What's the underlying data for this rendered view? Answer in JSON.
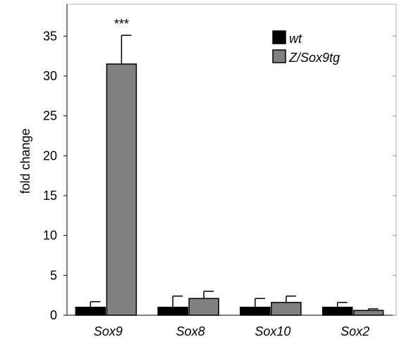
{
  "chart_data": {
    "type": "bar",
    "categories": [
      "Sox9",
      "Sox8",
      "Sox10",
      "Sox2"
    ],
    "series": [
      {
        "name": "wt",
        "values": [
          1.0,
          1.0,
          1.0,
          1.0
        ],
        "errors": [
          0.7,
          1.4,
          1.1,
          0.6
        ],
        "color": "#000000"
      },
      {
        "name": "Z/Sox9tg",
        "values": [
          31.5,
          2.1,
          1.6,
          0.6
        ],
        "errors": [
          3.6,
          0.9,
          0.8,
          0.2
        ],
        "color": "#808080"
      }
    ],
    "ylabel": "fold change",
    "xlabel": "",
    "ylim": [
      0,
      39
    ],
    "yticks": [
      0,
      5,
      10,
      15,
      20,
      25,
      30,
      35
    ],
    "grid": false,
    "legend": "top-right",
    "annotations": [
      {
        "category": "Sox9",
        "series": "Z/Sox9tg",
        "text": "***"
      }
    ]
  }
}
